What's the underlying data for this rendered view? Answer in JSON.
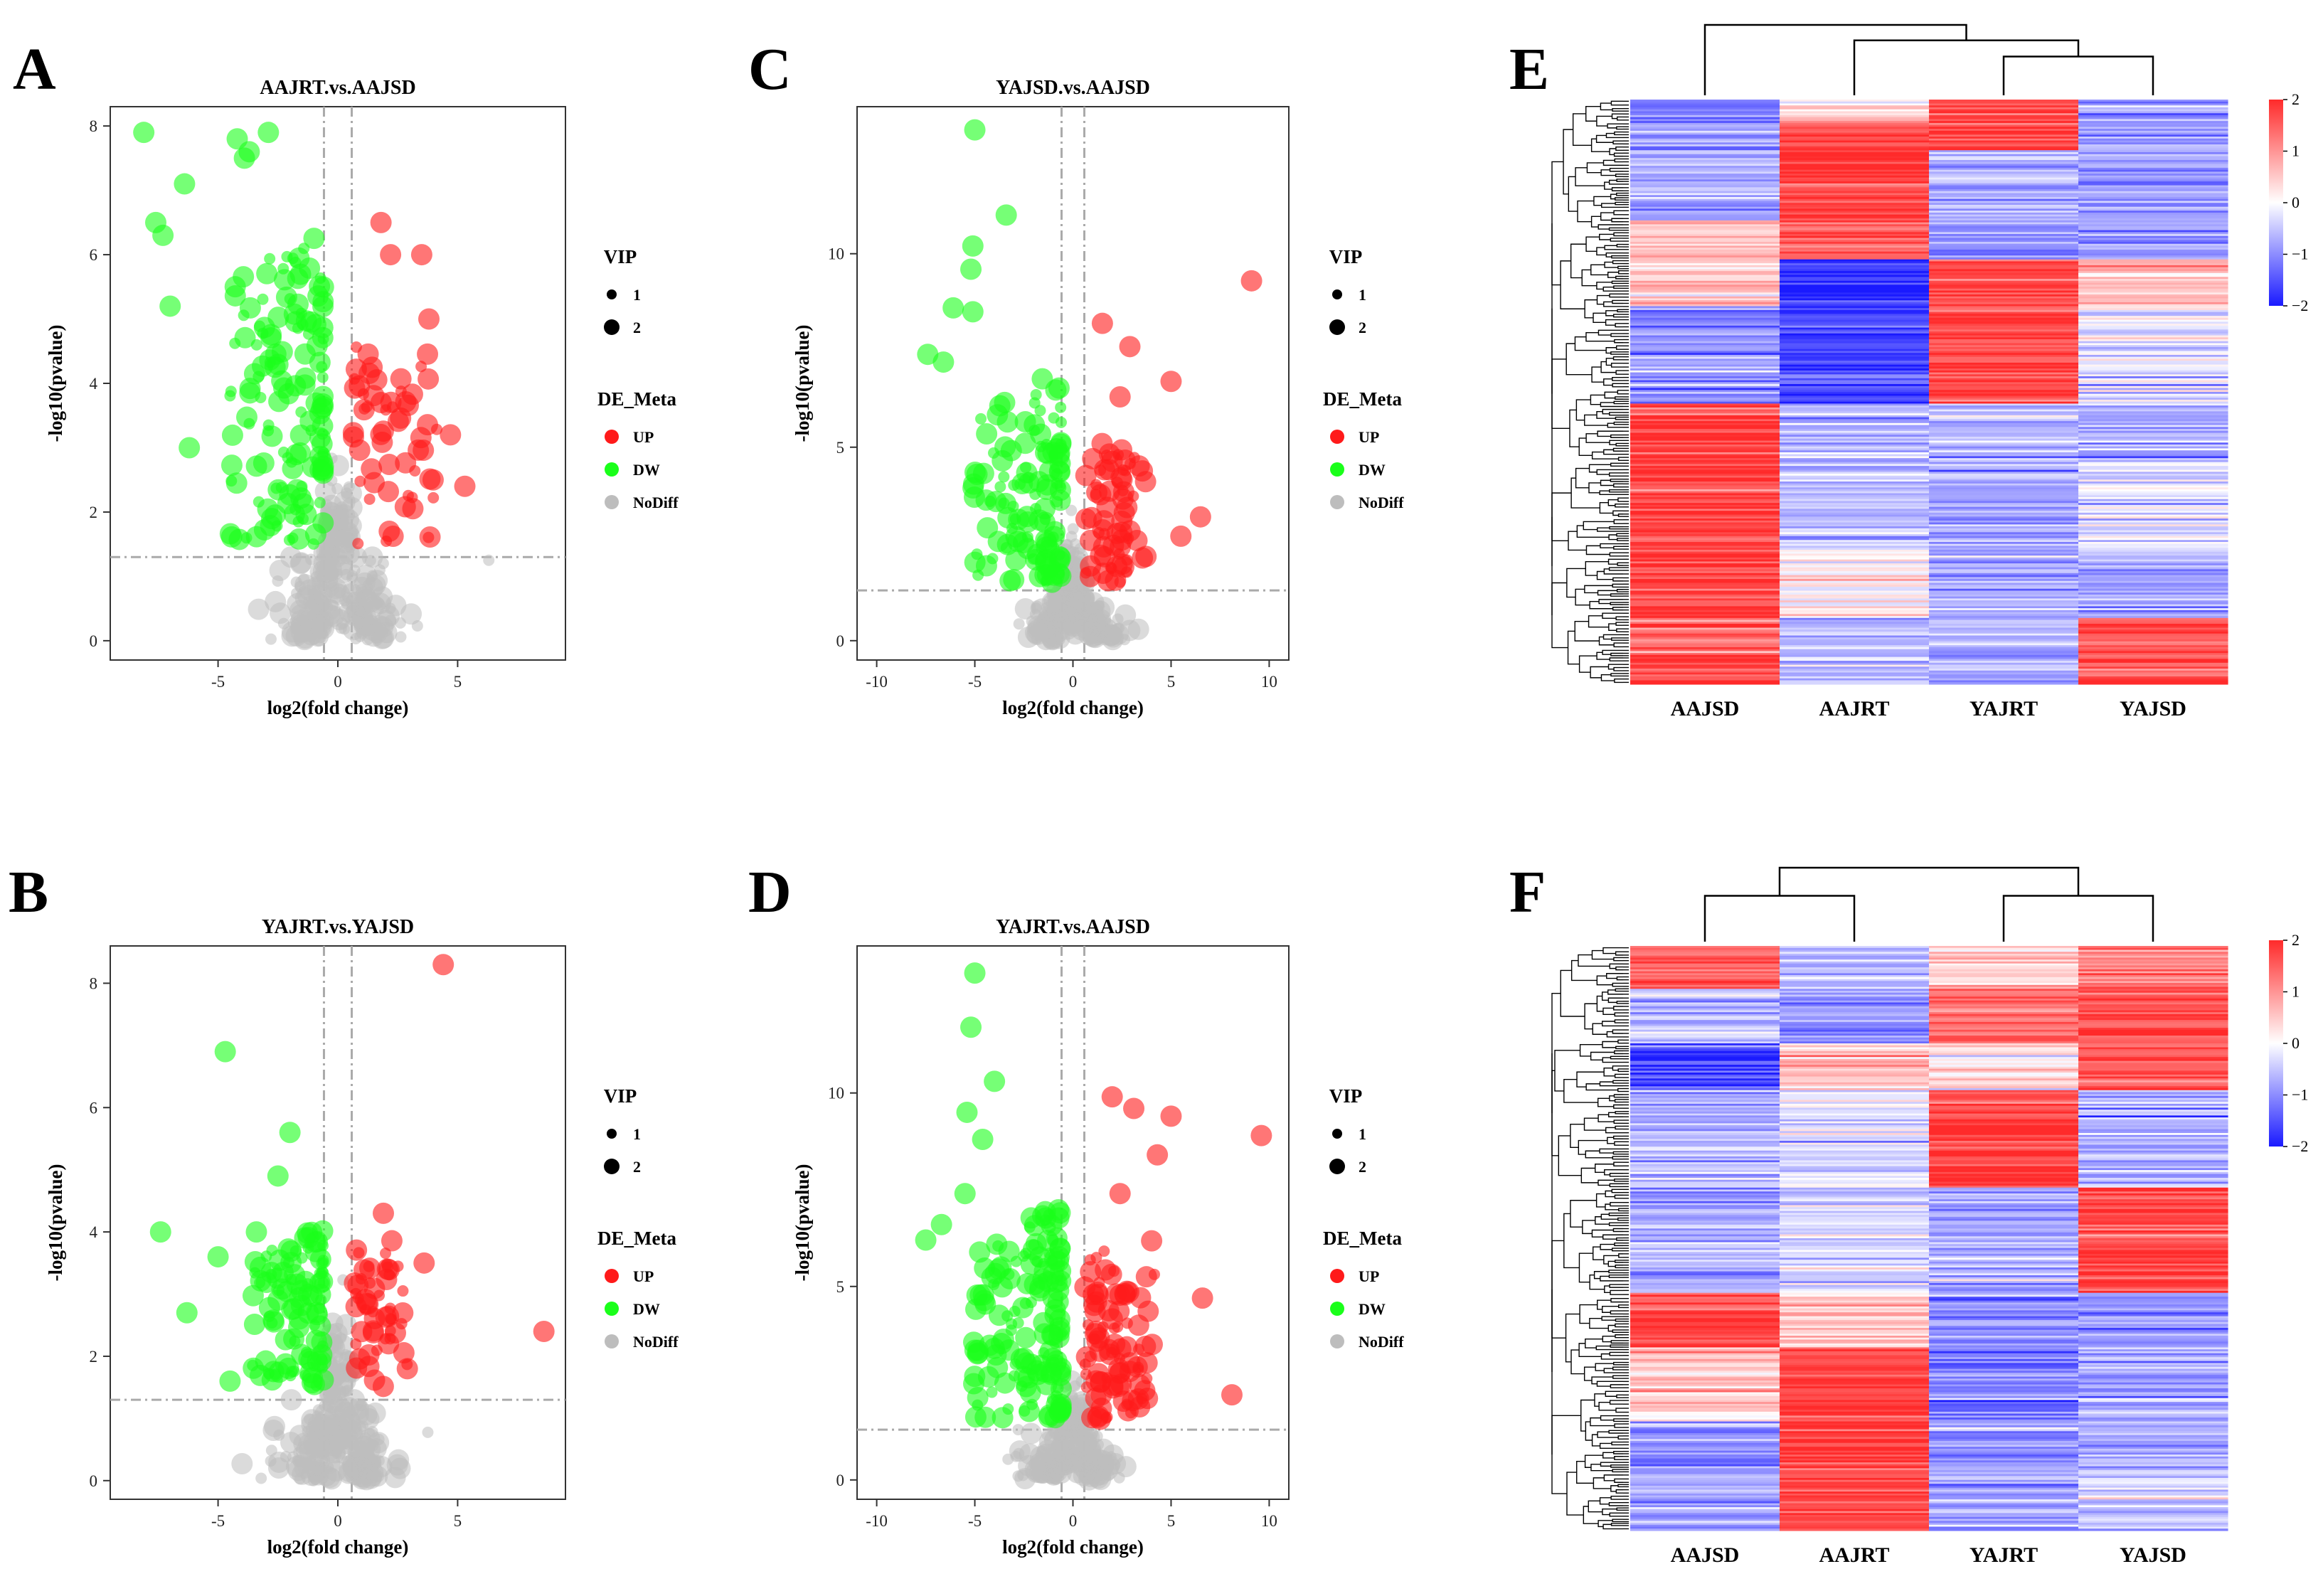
{
  "colors": {
    "up": "#ff1a1a",
    "dw": "#1aff1a",
    "nodiff": "#bdbdbd",
    "high": "#ff2a2a",
    "mid": "#ffffff",
    "low": "#1a1aff"
  },
  "chart_data": [
    {
      "panel": "A",
      "type": "scatter",
      "title": "AAJRT.vs.AAJSD",
      "xlabel": "log2(fold change)",
      "ylabel": "-log10(pvalue)",
      "xlim": [
        -9.5,
        9.5
      ],
      "ylim": [
        -0.3,
        8.3
      ],
      "xticks": [
        -5,
        0,
        5
      ],
      "yticks": [
        0,
        2,
        4,
        6,
        8
      ],
      "fc_cut": 0.58,
      "p_cut": 1.3,
      "seed": 11,
      "n_dw": 150,
      "n_up": 60,
      "n_nd": 260,
      "dw_x": [
        -4.5,
        -0.6
      ],
      "up_x": [
        0.6,
        4.5
      ],
      "dw_ymax": 6.5,
      "up_ymax": 4.6,
      "highlights": [
        {
          "x": -8.1,
          "y": 7.9,
          "g": "DW",
          "vip": 2
        },
        {
          "x": -7.6,
          "y": 6.5,
          "g": "DW",
          "vip": 2
        },
        {
          "x": -7.3,
          "y": 6.3,
          "g": "DW",
          "vip": 2
        },
        {
          "x": -6.4,
          "y": 7.1,
          "g": "DW",
          "vip": 2
        },
        {
          "x": -4.2,
          "y": 7.8,
          "g": "DW",
          "vip": 2
        },
        {
          "x": -3.9,
          "y": 7.5,
          "g": "DW",
          "vip": 2
        },
        {
          "x": -2.9,
          "y": 7.9,
          "g": "DW",
          "vip": 2
        },
        {
          "x": -7.0,
          "y": 5.2,
          "g": "DW",
          "vip": 2
        },
        {
          "x": -6.2,
          "y": 3.0,
          "g": "DW",
          "vip": 2
        },
        {
          "x": -3.7,
          "y": 7.6,
          "g": "DW",
          "vip": 2
        },
        {
          "x": 1.8,
          "y": 6.5,
          "g": "UP",
          "vip": 2
        },
        {
          "x": 2.2,
          "y": 6.0,
          "g": "UP",
          "vip": 2
        },
        {
          "x": 3.5,
          "y": 6.0,
          "g": "UP",
          "vip": 2
        },
        {
          "x": 3.8,
          "y": 5.0,
          "g": "UP",
          "vip": 2
        },
        {
          "x": 5.3,
          "y": 2.4,
          "g": "UP",
          "vip": 2
        },
        {
          "x": 4.7,
          "y": 3.2,
          "g": "UP",
          "vip": 2
        },
        {
          "x": 6.3,
          "y": 1.25,
          "g": "NoDiff",
          "vip": 1
        }
      ]
    },
    {
      "panel": "B",
      "type": "scatter",
      "title": "YAJRT.vs.YAJSD",
      "xlabel": "log2(fold change)",
      "ylabel": "-log10(pvalue)",
      "xlim": [
        -9.5,
        9.5
      ],
      "ylim": [
        -0.3,
        8.6
      ],
      "xticks": [
        -5,
        0,
        5
      ],
      "yticks": [
        0,
        2,
        4,
        6,
        8
      ],
      "fc_cut": 0.58,
      "p_cut": 1.3,
      "seed": 23,
      "n_dw": 110,
      "n_up": 55,
      "n_nd": 280,
      "dw_x": [
        -3.6,
        -0.6
      ],
      "up_x": [
        0.6,
        3.2
      ],
      "dw_ymax": 4.1,
      "up_ymax": 3.9,
      "highlights": [
        {
          "x": 4.4,
          "y": 8.3,
          "g": "UP",
          "vip": 2
        },
        {
          "x": -4.7,
          "y": 6.9,
          "g": "DW",
          "vip": 2
        },
        {
          "x": -7.4,
          "y": 4.0,
          "g": "DW",
          "vip": 2
        },
        {
          "x": -5.0,
          "y": 3.6,
          "g": "DW",
          "vip": 2
        },
        {
          "x": -3.4,
          "y": 4.0,
          "g": "DW",
          "vip": 2
        },
        {
          "x": -2.0,
          "y": 5.6,
          "g": "DW",
          "vip": 2
        },
        {
          "x": -6.3,
          "y": 2.7,
          "g": "DW",
          "vip": 2
        },
        {
          "x": -4.5,
          "y": 1.6,
          "g": "DW",
          "vip": 2
        },
        {
          "x": -2.5,
          "y": 4.9,
          "g": "DW",
          "vip": 2
        },
        {
          "x": 8.6,
          "y": 2.4,
          "g": "UP",
          "vip": 2
        },
        {
          "x": 1.9,
          "y": 4.3,
          "g": "UP",
          "vip": 2
        },
        {
          "x": 3.6,
          "y": 3.5,
          "g": "UP",
          "vip": 2
        },
        {
          "x": 2.9,
          "y": 1.8,
          "g": "UP",
          "vip": 2
        }
      ]
    },
    {
      "panel": "C",
      "type": "scatter",
      "title": "YAJSD.vs.AAJSD",
      "xlabel": "log2(fold change)",
      "ylabel": "-log10(pvalue)",
      "xlim": [
        -11,
        11
      ],
      "ylim": [
        -0.5,
        13.8
      ],
      "xticks": [
        -10,
        -5,
        0,
        5,
        10
      ],
      "yticks": [
        0,
        5,
        10
      ],
      "fc_cut": 0.58,
      "p_cut": 1.3,
      "seed": 37,
      "n_dw": 130,
      "n_up": 70,
      "n_nd": 240,
      "dw_x": [
        -5.2,
        -0.6
      ],
      "up_x": [
        0.6,
        4.2
      ],
      "dw_ymax": 7.0,
      "up_ymax": 5.2,
      "highlights": [
        {
          "x": -5.0,
          "y": 13.2,
          "g": "DW",
          "vip": 2
        },
        {
          "x": -3.4,
          "y": 11.0,
          "g": "DW",
          "vip": 2
        },
        {
          "x": -5.1,
          "y": 10.2,
          "g": "DW",
          "vip": 2
        },
        {
          "x": -5.2,
          "y": 9.6,
          "g": "DW",
          "vip": 2
        },
        {
          "x": -6.1,
          "y": 8.6,
          "g": "DW",
          "vip": 2
        },
        {
          "x": -7.4,
          "y": 7.4,
          "g": "DW",
          "vip": 2
        },
        {
          "x": -6.6,
          "y": 7.2,
          "g": "DW",
          "vip": 2
        },
        {
          "x": -5.1,
          "y": 8.5,
          "g": "DW",
          "vip": 2
        },
        {
          "x": 9.1,
          "y": 9.3,
          "g": "UP",
          "vip": 2
        },
        {
          "x": 1.5,
          "y": 8.2,
          "g": "UP",
          "vip": 2
        },
        {
          "x": 2.9,
          "y": 7.6,
          "g": "UP",
          "vip": 2
        },
        {
          "x": 5.0,
          "y": 6.7,
          "g": "UP",
          "vip": 2
        },
        {
          "x": 2.4,
          "y": 6.3,
          "g": "UP",
          "vip": 2
        },
        {
          "x": 6.5,
          "y": 3.2,
          "g": "UP",
          "vip": 2
        },
        {
          "x": 5.5,
          "y": 2.7,
          "g": "UP",
          "vip": 2
        }
      ]
    },
    {
      "panel": "D",
      "type": "scatter",
      "title": "YAJRT.vs.AAJSD",
      "xlabel": "log2(fold change)",
      "ylabel": "-log10(pvalue)",
      "xlim": [
        -11,
        11
      ],
      "ylim": [
        -0.5,
        13.8
      ],
      "xticks": [
        -10,
        -5,
        0,
        5,
        10
      ],
      "yticks": [
        0,
        5,
        10
      ],
      "fc_cut": 0.58,
      "p_cut": 1.3,
      "seed": 53,
      "n_dw": 160,
      "n_up": 95,
      "n_nd": 230,
      "dw_x": [
        -5.2,
        -0.6
      ],
      "up_x": [
        0.6,
        4.5
      ],
      "dw_ymax": 7.2,
      "up_ymax": 6.2,
      "highlights": [
        {
          "x": -5.0,
          "y": 13.1,
          "g": "DW",
          "vip": 2
        },
        {
          "x": -5.2,
          "y": 11.7,
          "g": "DW",
          "vip": 2
        },
        {
          "x": -4.0,
          "y": 10.3,
          "g": "DW",
          "vip": 2
        },
        {
          "x": -5.4,
          "y": 9.5,
          "g": "DW",
          "vip": 2
        },
        {
          "x": -4.6,
          "y": 8.8,
          "g": "DW",
          "vip": 2
        },
        {
          "x": -5.5,
          "y": 7.4,
          "g": "DW",
          "vip": 2
        },
        {
          "x": -7.5,
          "y": 6.2,
          "g": "DW",
          "vip": 2
        },
        {
          "x": -6.7,
          "y": 6.6,
          "g": "DW",
          "vip": 2
        },
        {
          "x": 2.0,
          "y": 9.9,
          "g": "UP",
          "vip": 2
        },
        {
          "x": 3.1,
          "y": 9.6,
          "g": "UP",
          "vip": 2
        },
        {
          "x": 5.0,
          "y": 9.4,
          "g": "UP",
          "vip": 2
        },
        {
          "x": 9.6,
          "y": 8.9,
          "g": "UP",
          "vip": 2
        },
        {
          "x": 4.3,
          "y": 8.4,
          "g": "UP",
          "vip": 2
        },
        {
          "x": 2.4,
          "y": 7.4,
          "g": "UP",
          "vip": 2
        },
        {
          "x": 6.6,
          "y": 4.7,
          "g": "UP",
          "vip": 2
        },
        {
          "x": 8.1,
          "y": 2.2,
          "g": "UP",
          "vip": 2
        }
      ]
    },
    {
      "panel": "E",
      "type": "heatmap",
      "columns": [
        "AAJSD",
        "AAJRT",
        "YAJRT",
        "YAJSD"
      ],
      "n_rows": 300,
      "seed": 71,
      "col_order": [
        0,
        1,
        2,
        3
      ],
      "colorbar": {
        "ticks": [
          2,
          1,
          0,
          -1,
          -2
        ],
        "labels": [
          "2",
          "1",
          "0",
          "−1",
          "−2"
        ]
      },
      "blocks": [
        {
          "rows": 12,
          "v": [
            -1.0,
            0.3,
            1.8,
            -0.9
          ]
        },
        {
          "rows": 14,
          "v": [
            -0.9,
            1.6,
            1.7,
            -0.8
          ]
        },
        {
          "rows": 36,
          "v": [
            -0.7,
            1.8,
            -0.7,
            -0.9
          ]
        },
        {
          "rows": 20,
          "v": [
            0.6,
            1.5,
            -0.9,
            -1.0
          ]
        },
        {
          "rows": 24,
          "v": [
            0.5,
            -1.7,
            1.6,
            0.8
          ]
        },
        {
          "rows": 50,
          "v": [
            -0.9,
            -1.6,
            1.7,
            -0.3
          ]
        },
        {
          "rows": 30,
          "v": [
            1.8,
            -0.7,
            -0.7,
            -0.8
          ]
        },
        {
          "rows": 46,
          "v": [
            1.8,
            -0.6,
            -0.8,
            -0.3
          ]
        },
        {
          "rows": 34,
          "v": [
            1.8,
            0.2,
            -0.8,
            -0.9
          ]
        },
        {
          "rows": 14,
          "v": [
            1.4,
            -0.6,
            -0.6,
            1.6
          ]
        },
        {
          "rows": 20,
          "v": [
            1.6,
            -0.5,
            -0.8,
            1.7
          ]
        }
      ],
      "tree": {
        "type": "top",
        "pairs": [
          [
            2,
            3
          ],
          [
            1,
            "23"
          ],
          [
            0,
            "123"
          ]
        ],
        "heights": [
          0.55,
          0.78,
          1.0
        ]
      }
    },
    {
      "panel": "F",
      "type": "heatmap",
      "columns": [
        "AAJSD",
        "AAJRT",
        "YAJRT",
        "YAJSD"
      ],
      "n_rows": 300,
      "seed": 89,
      "col_order": [
        0,
        1,
        2,
        3
      ],
      "colorbar": {
        "ticks": [
          2,
          1,
          0,
          -1,
          -2
        ],
        "labels": [
          "2",
          "1",
          "0",
          "−1",
          "−2"
        ]
      },
      "blocks": [
        {
          "rows": 22,
          "v": [
            1.6,
            -0.6,
            0.5,
            1.2
          ]
        },
        {
          "rows": 28,
          "v": [
            -0.6,
            -0.9,
            1.5,
            1.7
          ]
        },
        {
          "rows": 24,
          "v": [
            -1.6,
            0.6,
            0.2,
            1.5
          ]
        },
        {
          "rows": 50,
          "v": [
            -0.6,
            -0.3,
            1.8,
            -0.7
          ]
        },
        {
          "rows": 54,
          "v": [
            -0.7,
            -0.4,
            -0.8,
            1.8
          ]
        },
        {
          "rows": 28,
          "v": [
            1.7,
            0.6,
            -1.0,
            -0.9
          ]
        },
        {
          "rows": 38,
          "v": [
            0.5,
            1.7,
            -1.1,
            -0.8
          ]
        },
        {
          "rows": 56,
          "v": [
            -0.9,
            1.8,
            -0.8,
            -0.6
          ]
        }
      ],
      "tree": {
        "type": "top",
        "pairs": [
          [
            0,
            1
          ],
          [
            2,
            3
          ],
          [
            "01",
            "23"
          ]
        ],
        "heights": [
          0.62,
          0.62,
          1.0
        ]
      }
    }
  ],
  "legend": {
    "vip_title": "VIP",
    "vip_items": [
      "1",
      "2"
    ],
    "group_title": "DE_Meta",
    "group_items": [
      "UP",
      "DW",
      "NoDiff"
    ]
  }
}
